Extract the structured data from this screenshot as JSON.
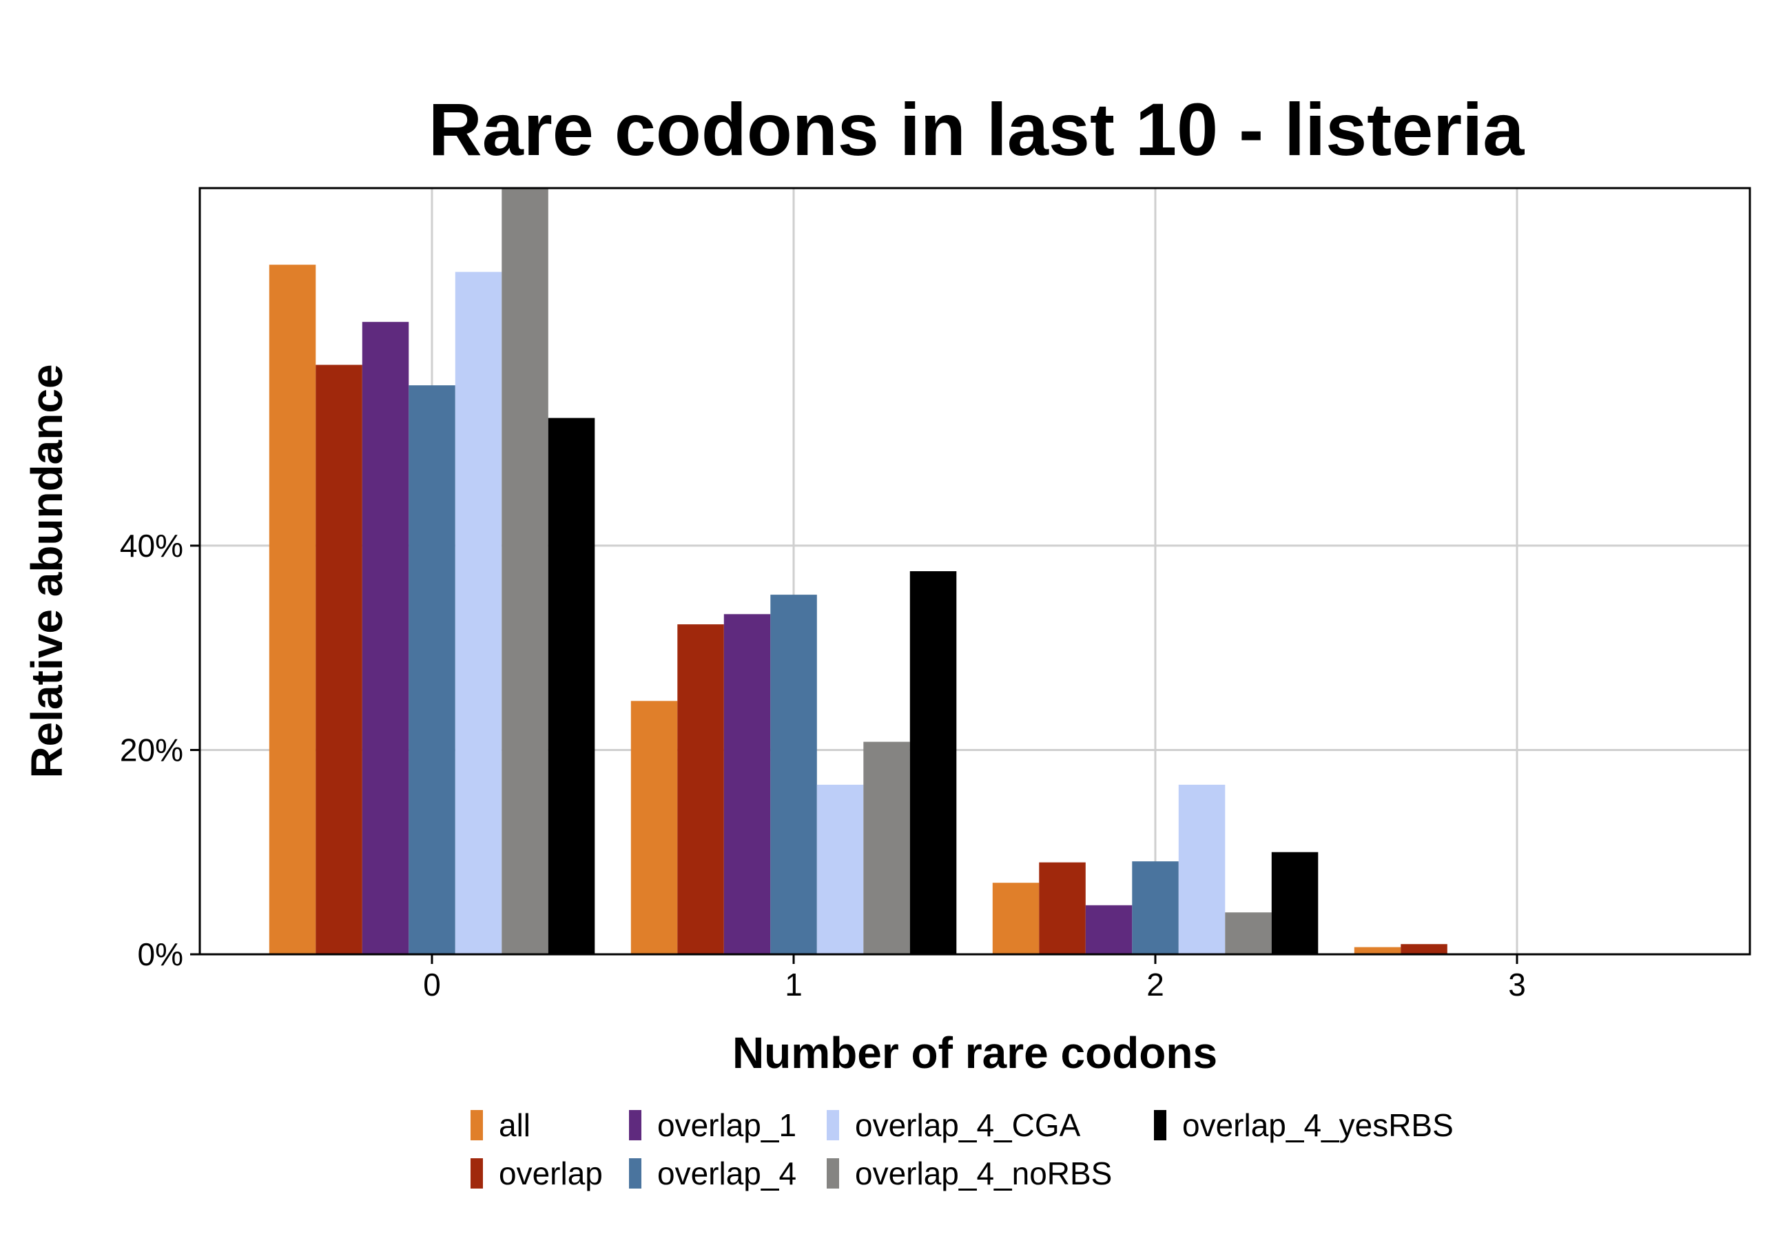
{
  "chart_data": {
    "type": "bar",
    "title": "Rare codons in last 10 - listeria",
    "xlabel": "Number of rare codons",
    "ylabel": "Relative abundance",
    "categories": [
      "0",
      "1",
      "2",
      "3"
    ],
    "yticks": [
      {
        "value": 0,
        "label": "0%"
      },
      {
        "value": 20,
        "label": "20%"
      },
      {
        "value": 40,
        "label": "40%"
      }
    ],
    "ylim": [
      0,
      75
    ],
    "grid": true,
    "legend_position": "bottom",
    "series": [
      {
        "name": "all",
        "color": "#E07F2A",
        "values": [
          67.5,
          24.8,
          7.0,
          0.7
        ]
      },
      {
        "name": "overlap",
        "color": "#A0280C",
        "values": [
          57.7,
          32.3,
          9.0,
          1.0
        ]
      },
      {
        "name": "overlap_1",
        "color": "#5F2A7E",
        "values": [
          61.9,
          33.3,
          4.8,
          0
        ]
      },
      {
        "name": "overlap_4",
        "color": "#4A749E",
        "values": [
          55.7,
          35.2,
          9.1,
          0
        ]
      },
      {
        "name": "overlap_4_CGA",
        "color": "#BDCEF8",
        "values": [
          66.8,
          16.6,
          16.6,
          0
        ]
      },
      {
        "name": "overlap_4_noRBS",
        "color": "#858482",
        "values": [
          75.0,
          20.8,
          4.1,
          0
        ]
      },
      {
        "name": "overlap_4_yesRBS",
        "color": "#000000",
        "values": [
          52.5,
          37.5,
          10.0,
          0
        ]
      }
    ]
  }
}
